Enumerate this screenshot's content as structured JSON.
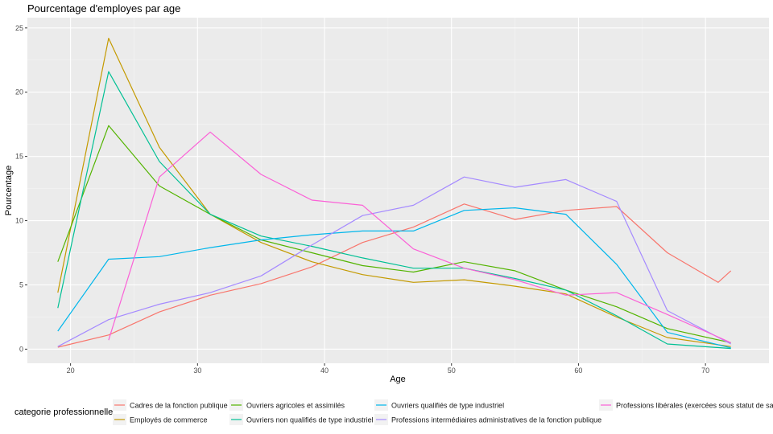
{
  "chart_data": {
    "type": "line",
    "title": "Pourcentage d'employes par age",
    "xlabel": "Age",
    "ylabel": "Pourcentage",
    "xlim": [
      16.6,
      75
    ],
    "ylim": [
      -1.1,
      25.8
    ],
    "x_ticks": [
      20,
      30,
      40,
      50,
      60,
      70
    ],
    "y_ticks": [
      0,
      5,
      10,
      15,
      20,
      25
    ],
    "x_minor": [
      25,
      35,
      45,
      55,
      65
    ],
    "y_minor": [
      2.5,
      7.5,
      12.5,
      17.5,
      22.5
    ],
    "grid": true,
    "legend_position": "bottom",
    "legend_title": "categorie professionnelle",
    "series": [
      {
        "name": "Cadres de la fonction publique",
        "color": "#F8766D",
        "points": [
          [
            19,
            0.15
          ],
          [
            23,
            1.1
          ],
          [
            27,
            2.9
          ],
          [
            31,
            4.2
          ],
          [
            35,
            5.1
          ],
          [
            39,
            6.4
          ],
          [
            43,
            8.3
          ],
          [
            47,
            9.5
          ],
          [
            51,
            11.3
          ],
          [
            55,
            10.1
          ],
          [
            59,
            10.8
          ],
          [
            63,
            11.1
          ],
          [
            67,
            7.5
          ],
          [
            71,
            5.2
          ],
          [
            72,
            6.1
          ]
        ]
      },
      {
        "name": "Employés de commerce",
        "color": "#C49A00",
        "points": [
          [
            19,
            4.4
          ],
          [
            23,
            24.2
          ],
          [
            27,
            15.7
          ],
          [
            31,
            10.5
          ],
          [
            35,
            8.3
          ],
          [
            39,
            6.8
          ],
          [
            43,
            5.8
          ],
          [
            47,
            5.2
          ],
          [
            51,
            5.4
          ],
          [
            55,
            4.9
          ],
          [
            59,
            4.3
          ],
          [
            63,
            2.5
          ],
          [
            67,
            0.9
          ],
          [
            72,
            0.2
          ]
        ]
      },
      {
        "name": "Ouvriers agricoles et assimilés",
        "color": "#53B400",
        "points": [
          [
            19,
            6.8
          ],
          [
            23,
            17.4
          ],
          [
            27,
            12.7
          ],
          [
            31,
            10.5
          ],
          [
            35,
            8.5
          ],
          [
            39,
            7.5
          ],
          [
            43,
            6.5
          ],
          [
            47,
            6.0
          ],
          [
            51,
            6.8
          ],
          [
            55,
            6.1
          ],
          [
            59,
            4.6
          ],
          [
            63,
            3.3
          ],
          [
            67,
            1.6
          ],
          [
            72,
            0.5
          ]
        ]
      },
      {
        "name": "Ouvriers non qualifiés de type industriel",
        "color": "#00C094",
        "points": [
          [
            19,
            3.2
          ],
          [
            23,
            21.6
          ],
          [
            27,
            14.6
          ],
          [
            31,
            10.5
          ],
          [
            35,
            8.8
          ],
          [
            39,
            8.0
          ],
          [
            43,
            7.1
          ],
          [
            47,
            6.3
          ],
          [
            51,
            6.3
          ],
          [
            55,
            5.5
          ],
          [
            59,
            4.6
          ],
          [
            63,
            2.6
          ],
          [
            67,
            0.4
          ],
          [
            72,
            0.05
          ]
        ]
      },
      {
        "name": "Ouvriers qualifiés de type industriel",
        "color": "#00B6EB",
        "points": [
          [
            19,
            1.4
          ],
          [
            23,
            7.0
          ],
          [
            27,
            7.2
          ],
          [
            31,
            7.9
          ],
          [
            35,
            8.5
          ],
          [
            39,
            8.9
          ],
          [
            43,
            9.2
          ],
          [
            47,
            9.2
          ],
          [
            51,
            10.8
          ],
          [
            55,
            11.0
          ],
          [
            59,
            10.5
          ],
          [
            63,
            6.6
          ],
          [
            67,
            1.3
          ],
          [
            72,
            0.1
          ]
        ]
      },
      {
        "name": "Professions intermédiaires administratives de la fonction publique",
        "color": "#A58AFF",
        "points": [
          [
            19,
            0.2
          ],
          [
            23,
            2.3
          ],
          [
            27,
            3.5
          ],
          [
            31,
            4.4
          ],
          [
            35,
            5.7
          ],
          [
            39,
            8.1
          ],
          [
            43,
            10.4
          ],
          [
            47,
            11.2
          ],
          [
            51,
            13.4
          ],
          [
            55,
            12.6
          ],
          [
            59,
            13.2
          ],
          [
            63,
            11.5
          ],
          [
            67,
            3.0
          ],
          [
            72,
            0.4
          ]
        ]
      },
      {
        "name": "Professions libérales (exercées sous statut de salar",
        "color": "#FB61D7",
        "points": [
          [
            23,
            0.7
          ],
          [
            27,
            13.4
          ],
          [
            31,
            16.9
          ],
          [
            35,
            13.6
          ],
          [
            39,
            11.6
          ],
          [
            43,
            11.2
          ],
          [
            47,
            7.8
          ],
          [
            51,
            6.3
          ],
          [
            55,
            5.4
          ],
          [
            59,
            4.2
          ],
          [
            63,
            4.4
          ],
          [
            67,
            2.7
          ],
          [
            72,
            0.5
          ]
        ]
      }
    ]
  }
}
